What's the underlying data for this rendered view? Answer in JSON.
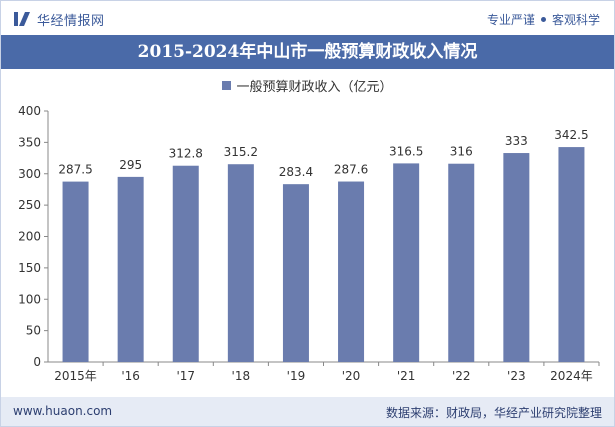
{
  "header": {
    "brand_name": "华经情报网",
    "tagline_left": "专业严谨",
    "tagline_right": "客观科学"
  },
  "title_bar": {
    "title": "2015-2024年中山市一般预算财政收入情况"
  },
  "colors": {
    "bar": "#6a7cae",
    "title_bg": "#4a6aa8",
    "brand": "#3b5a9a",
    "footer_bg": "#e6ebf5"
  },
  "chart_data": {
    "type": "bar",
    "categories": [
      "2015年",
      "'16",
      "'17",
      "'18",
      "'19",
      "'20",
      "'21",
      "'22",
      "'23",
      "2024年"
    ],
    "series": [
      {
        "name": "一般预算财政收入（亿元）",
        "values": [
          287.5,
          295,
          312.8,
          315.2,
          283.4,
          287.6,
          316.5,
          316,
          333,
          342.5
        ],
        "labels": [
          "287.5",
          "295",
          "312.8",
          "315.2",
          "283.4",
          "287.6",
          "316.5",
          "316",
          "333",
          "342.5"
        ]
      }
    ],
    "ylim": [
      0,
      400
    ],
    "yticks": [
      0,
      50,
      100,
      150,
      200,
      250,
      300,
      350,
      400
    ],
    "grid": false,
    "legend": "top"
  },
  "footer": {
    "website": "www.huaon.com",
    "source": "数据来源：财政局，华经产业研究院整理"
  }
}
